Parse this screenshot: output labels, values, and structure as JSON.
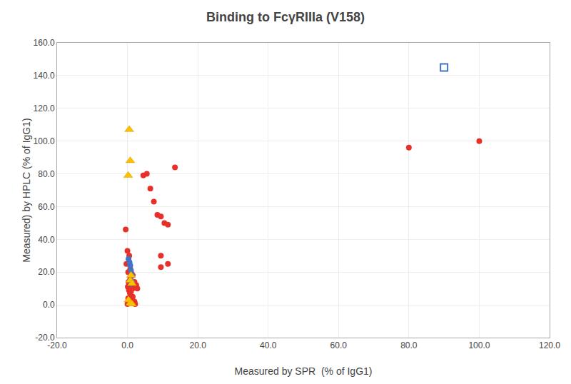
{
  "chart_data": {
    "type": "scatter",
    "title": "Binding to FcγRIIIa (V158)",
    "xlabel": "Measured by SPR  (% of IgG1)",
    "ylabel": "Measured) by HPLC (% of IgG1)",
    "xlim": [
      -20.0,
      120.0
    ],
    "ylim": [
      -20.0,
      160.0
    ],
    "xticks": [
      {
        "value": -20.0,
        "label": "-20.0"
      },
      {
        "value": 0.0,
        "label": "0.0"
      },
      {
        "value": 20.0,
        "label": "20.0"
      },
      {
        "value": 40.0,
        "label": "40.0"
      },
      {
        "value": 60.0,
        "label": "60.0"
      },
      {
        "value": 80.0,
        "label": "80.0"
      },
      {
        "value": 100.0,
        "label": "100.0"
      },
      {
        "value": 120.0,
        "label": "120.0"
      }
    ],
    "yticks": [
      {
        "value": -20.0,
        "label": "-20.0"
      },
      {
        "value": 0.0,
        "label": "0.0"
      },
      {
        "value": 20.0,
        "label": "20.0"
      },
      {
        "value": 40.0,
        "label": "40.0"
      },
      {
        "value": 60.0,
        "label": "60.0"
      },
      {
        "value": 80.0,
        "label": "80.0"
      },
      {
        "value": 100.0,
        "label": "100.0"
      },
      {
        "value": 120.0,
        "label": "120.0"
      },
      {
        "value": 140.0,
        "label": "140.0"
      },
      {
        "value": 160.0,
        "label": "160.0"
      }
    ],
    "grid": true,
    "series": [
      {
        "color": "#e8302a",
        "marker": "circle",
        "x": [
          -0.5,
          0.0,
          0.5,
          -0.3,
          0.8,
          0.2,
          1.2,
          1.5,
          0.8,
          0.3,
          2.0,
          0.6,
          1.2,
          2.5,
          0.1,
          1.5,
          2.8,
          0.4,
          1.0,
          0.7,
          1.5,
          0.2,
          0.8,
          2.0,
          0.5,
          1.3,
          0.0,
          2.2,
          4.5,
          5.5,
          6.5,
          7.5,
          8.5,
          9.5,
          10.5,
          11.5,
          13.5,
          9.5,
          11.5,
          9.5,
          80.0,
          100.0
        ],
        "values": [
          46.0,
          33.0,
          30.0,
          25.0,
          22.0,
          20.0,
          19.0,
          18.0,
          16.0,
          14.0,
          14.0,
          13.0,
          12.0,
          12.0,
          11.0,
          10.0,
          10.0,
          9.0,
          8.0,
          7.0,
          5.0,
          4.0,
          3.0,
          2.0,
          1.5,
          1.0,
          0.5,
          0.5,
          79.0,
          80.0,
          71.0,
          63.0,
          55.0,
          54.0,
          50.0,
          49.0,
          84.0,
          30.0,
          25.0,
          23.0,
          96.0,
          100.0
        ]
      },
      {
        "color": "#4472c4",
        "marker": "circle",
        "x": [
          0.3,
          0.6,
          0.8,
          1.0,
          1.3,
          0.8,
          1.3,
          1.0
        ],
        "values": [
          28.0,
          26.0,
          24.0,
          21.0,
          18.0,
          15.0,
          14.0,
          13.0
        ]
      },
      {
        "color": "#ffc000",
        "marker": "triangle-up",
        "x": [
          0.5,
          0.8,
          0.2,
          1.0,
          0.8,
          1.3,
          0.3,
          0.8,
          1.3
        ],
        "values": [
          107.0,
          88.0,
          79.0,
          18.0,
          15.0,
          13.0,
          3.0,
          1.0,
          0.5
        ]
      },
      {
        "color": "#4472c4",
        "marker": "square-open",
        "x": [
          90.0
        ],
        "values": [
          145.0
        ]
      }
    ]
  }
}
